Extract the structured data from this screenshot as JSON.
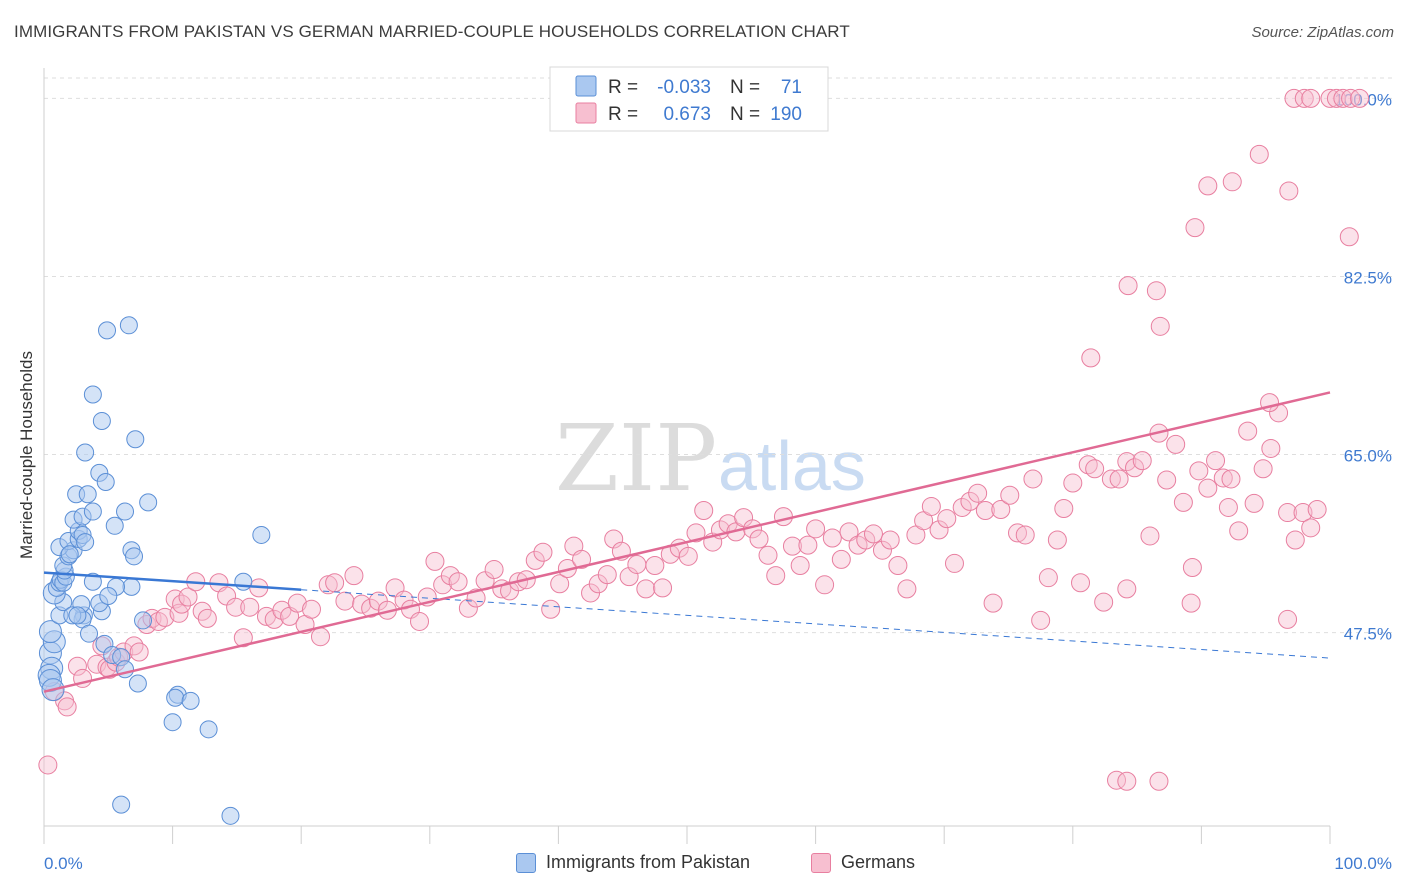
{
  "title": "IMMIGRANTS FROM PAKISTAN VS GERMAN MARRIED-COUPLE HOUSEHOLDS CORRELATION CHART",
  "source": "Source: ZipAtlas.com",
  "watermark": {
    "zip": "ZIP",
    "atlas": "atlas"
  },
  "legend": {
    "rows": [
      {
        "r_label": "R =",
        "r_value": "-0.033",
        "n_label": "N =",
        "n_value": "71",
        "color": "#aac8f0",
        "stroke": "#5b8fd6"
      },
      {
        "r_label": "R =",
        "r_value": "0.673",
        "n_label": "N =",
        "n_value": "190",
        "color": "#f7bfd0",
        "stroke": "#e87fa0"
      }
    ]
  },
  "bottom_legend": [
    "Immigrants from Pakistan",
    "Germans"
  ],
  "colors": {
    "blue_fill": "#aac8f0",
    "blue_stroke": "#5b8fd6",
    "blue_line": "#3a78d4",
    "pink_fill": "#f7bfd0",
    "pink_stroke": "#e87fa0",
    "pink_line": "#e06a94",
    "tick_text": "#3f7ad0"
  },
  "chart_data": {
    "type": "scatter",
    "title": "IMMIGRANTS FROM PAKISTAN VS GERMAN MARRIED-COUPLE HOUSEHOLDS CORRELATION CHART",
    "xlabel": "",
    "ylabel": "Married-couple Households",
    "xlim": [
      0,
      100
    ],
    "ylim": [
      28.5,
      102
    ],
    "x_tick_labels": [
      "0.0%",
      "100.0%"
    ],
    "y_ticks": [
      47.5,
      65.0,
      82.5,
      100.0
    ],
    "y_tick_labels": [
      "47.5%",
      "65.0%",
      "82.5%",
      "100.0%"
    ],
    "grid": true,
    "legend_position": "top-center",
    "series": [
      {
        "name": "Immigrants from Pakistan",
        "r": -0.033,
        "n": 71,
        "trend": {
          "x": [
            0,
            100
          ],
          "y": [
            53.4,
            45.0
          ],
          "solid_until": 20
        },
        "points": [
          [
            0.5,
            45.5
          ],
          [
            0.6,
            44.0
          ],
          [
            0.4,
            43.3
          ],
          [
            0.5,
            42.8
          ],
          [
            0.7,
            41.9
          ],
          [
            0.8,
            46.6
          ],
          [
            0.5,
            47.6
          ],
          [
            1.2,
            49.2
          ],
          [
            1.5,
            50.5
          ],
          [
            0.8,
            51.4
          ],
          [
            1.0,
            51.9
          ],
          [
            1.2,
            52.4
          ],
          [
            1.3,
            52.7
          ],
          [
            1.5,
            52.4
          ],
          [
            1.7,
            53.0
          ],
          [
            1.6,
            53.6
          ],
          [
            1.5,
            54.1
          ],
          [
            1.9,
            55.0
          ],
          [
            2.3,
            55.6
          ],
          [
            1.2,
            55.9
          ],
          [
            1.9,
            56.5
          ],
          [
            2.7,
            56.7
          ],
          [
            2.7,
            57.5
          ],
          [
            3.0,
            57.1
          ],
          [
            3.2,
            56.4
          ],
          [
            2.3,
            58.6
          ],
          [
            3.0,
            58.9
          ],
          [
            3.8,
            59.4
          ],
          [
            2.5,
            61.1
          ],
          [
            3.4,
            61.1
          ],
          [
            4.3,
            63.2
          ],
          [
            3.2,
            65.2
          ],
          [
            3.8,
            70.9
          ],
          [
            4.5,
            68.3
          ],
          [
            4.9,
            77.2
          ],
          [
            6.6,
            77.7
          ],
          [
            7.1,
            66.5
          ],
          [
            4.8,
            62.3
          ],
          [
            6.3,
            59.4
          ],
          [
            3.8,
            52.5
          ],
          [
            5.5,
            58.0
          ],
          [
            6.8,
            55.6
          ],
          [
            7.0,
            55.0
          ],
          [
            8.1,
            60.3
          ],
          [
            6.8,
            52.0
          ],
          [
            5.6,
            52.0
          ],
          [
            3.1,
            49.2
          ],
          [
            4.5,
            49.6
          ],
          [
            4.3,
            50.4
          ],
          [
            5.0,
            51.1
          ],
          [
            3.0,
            48.8
          ],
          [
            2.9,
            50.3
          ],
          [
            2.2,
            49.2
          ],
          [
            2.6,
            49.2
          ],
          [
            3.5,
            47.4
          ],
          [
            4.7,
            46.4
          ],
          [
            5.3,
            45.3
          ],
          [
            6.0,
            45.1
          ],
          [
            6.3,
            43.9
          ],
          [
            7.3,
            42.5
          ],
          [
            7.7,
            48.7
          ],
          [
            10.4,
            41.4
          ],
          [
            10.2,
            41.1
          ],
          [
            11.4,
            40.8
          ],
          [
            10.0,
            38.7
          ],
          [
            12.8,
            38.0
          ],
          [
            15.5,
            52.5
          ],
          [
            16.9,
            57.1
          ],
          [
            6.0,
            30.6
          ],
          [
            14.5,
            29.5
          ],
          [
            2.0,
            55.2
          ]
        ]
      },
      {
        "name": "Germans",
        "r": 0.673,
        "n": 190,
        "trend": {
          "x": [
            0,
            100
          ],
          "y": [
            41.7,
            71.1
          ]
        },
        "points": [
          [
            0.3,
            34.5
          ],
          [
            0.8,
            41.7
          ],
          [
            1.6,
            40.8
          ],
          [
            1.8,
            40.2
          ],
          [
            2.6,
            44.2
          ],
          [
            3.0,
            43.0
          ],
          [
            4.1,
            44.4
          ],
          [
            4.5,
            46.2
          ],
          [
            4.9,
            44.1
          ],
          [
            5.1,
            43.9
          ],
          [
            5.6,
            44.6
          ],
          [
            5.8,
            45.1
          ],
          [
            6.2,
            45.6
          ],
          [
            7.0,
            46.2
          ],
          [
            7.4,
            45.6
          ],
          [
            8.0,
            48.3
          ],
          [
            8.4,
            48.9
          ],
          [
            8.9,
            48.6
          ],
          [
            9.4,
            49.0
          ],
          [
            10.2,
            50.8
          ],
          [
            10.5,
            49.4
          ],
          [
            10.7,
            50.3
          ],
          [
            11.2,
            51.0
          ],
          [
            11.8,
            52.5
          ],
          [
            12.3,
            49.6
          ],
          [
            12.7,
            48.9
          ],
          [
            13.6,
            52.4
          ],
          [
            14.2,
            51.1
          ],
          [
            14.9,
            50.0
          ],
          [
            15.5,
            47.0
          ],
          [
            16.0,
            50.0
          ],
          [
            16.7,
            51.9
          ],
          [
            17.3,
            49.1
          ],
          [
            17.9,
            48.8
          ],
          [
            18.5,
            49.7
          ],
          [
            19.1,
            49.1
          ],
          [
            19.7,
            50.4
          ],
          [
            20.3,
            48.3
          ],
          [
            20.8,
            49.8
          ],
          [
            21.5,
            47.1
          ],
          [
            22.1,
            52.2
          ],
          [
            22.6,
            52.4
          ],
          [
            23.4,
            50.6
          ],
          [
            24.1,
            53.1
          ],
          [
            24.7,
            50.3
          ],
          [
            25.4,
            49.9
          ],
          [
            26.0,
            50.6
          ],
          [
            26.7,
            49.7
          ],
          [
            27.3,
            51.9
          ],
          [
            28.0,
            50.7
          ],
          [
            28.5,
            49.8
          ],
          [
            29.2,
            48.6
          ],
          [
            29.8,
            51.0
          ],
          [
            30.4,
            54.5
          ],
          [
            31.0,
            52.2
          ],
          [
            31.6,
            53.1
          ],
          [
            32.2,
            52.5
          ],
          [
            33.0,
            49.9
          ],
          [
            33.6,
            50.9
          ],
          [
            34.3,
            52.6
          ],
          [
            35.0,
            53.7
          ],
          [
            35.6,
            51.8
          ],
          [
            36.2,
            51.6
          ],
          [
            36.9,
            52.5
          ],
          [
            37.5,
            52.7
          ],
          [
            38.2,
            54.6
          ],
          [
            38.8,
            55.4
          ],
          [
            39.4,
            49.8
          ],
          [
            40.1,
            52.3
          ],
          [
            40.7,
            53.8
          ],
          [
            41.2,
            56.0
          ],
          [
            41.8,
            54.7
          ],
          [
            42.5,
            51.4
          ],
          [
            43.1,
            52.3
          ],
          [
            43.8,
            53.2
          ],
          [
            44.3,
            56.7
          ],
          [
            44.9,
            55.5
          ],
          [
            45.5,
            53.0
          ],
          [
            46.1,
            54.2
          ],
          [
            46.8,
            51.8
          ],
          [
            47.5,
            54.1
          ],
          [
            48.1,
            51.9
          ],
          [
            48.7,
            55.2
          ],
          [
            49.4,
            55.8
          ],
          [
            50.1,
            55.0
          ],
          [
            50.7,
            57.3
          ],
          [
            51.3,
            59.5
          ],
          [
            52.0,
            56.4
          ],
          [
            52.6,
            57.6
          ],
          [
            53.2,
            58.2
          ],
          [
            53.8,
            57.4
          ],
          [
            54.4,
            58.8
          ],
          [
            55.1,
            57.7
          ],
          [
            55.6,
            56.7
          ],
          [
            56.3,
            55.1
          ],
          [
            56.9,
            53.1
          ],
          [
            57.5,
            58.9
          ],
          [
            58.2,
            56.0
          ],
          [
            58.8,
            54.1
          ],
          [
            59.4,
            56.1
          ],
          [
            60.0,
            57.7
          ],
          [
            60.7,
            52.2
          ],
          [
            61.3,
            56.8
          ],
          [
            62.0,
            54.7
          ],
          [
            62.6,
            57.4
          ],
          [
            63.3,
            56.1
          ],
          [
            63.9,
            56.6
          ],
          [
            64.5,
            57.2
          ],
          [
            65.2,
            55.6
          ],
          [
            65.8,
            56.6
          ],
          [
            66.4,
            54.1
          ],
          [
            67.1,
            51.8
          ],
          [
            67.8,
            57.1
          ],
          [
            68.4,
            58.5
          ],
          [
            69.0,
            59.9
          ],
          [
            69.6,
            57.6
          ],
          [
            70.2,
            58.7
          ],
          [
            70.8,
            54.3
          ],
          [
            71.4,
            59.8
          ],
          [
            72.0,
            60.4
          ],
          [
            72.6,
            61.2
          ],
          [
            73.2,
            59.5
          ],
          [
            73.8,
            50.4
          ],
          [
            74.4,
            59.6
          ],
          [
            75.1,
            61.0
          ],
          [
            75.7,
            57.3
          ],
          [
            76.3,
            57.1
          ],
          [
            76.9,
            62.6
          ],
          [
            77.5,
            48.7
          ],
          [
            78.1,
            52.9
          ],
          [
            78.8,
            56.6
          ],
          [
            79.3,
            59.7
          ],
          [
            80.0,
            62.2
          ],
          [
            80.6,
            52.4
          ],
          [
            81.2,
            64.0
          ],
          [
            81.7,
            63.6
          ],
          [
            82.4,
            50.5
          ],
          [
            83.0,
            62.6
          ],
          [
            83.6,
            62.6
          ],
          [
            84.2,
            64.3
          ],
          [
            84.8,
            63.7
          ],
          [
            85.4,
            64.4
          ],
          [
            86.0,
            57.0
          ],
          [
            86.7,
            67.1
          ],
          [
            87.3,
            62.5
          ],
          [
            88.0,
            66.0
          ],
          [
            88.6,
            60.3
          ],
          [
            89.2,
            50.4
          ],
          [
            89.8,
            63.4
          ],
          [
            90.5,
            61.7
          ],
          [
            91.1,
            64.4
          ],
          [
            91.7,
            62.7
          ],
          [
            92.3,
            62.6
          ],
          [
            92.9,
            57.5
          ],
          [
            93.6,
            67.3
          ],
          [
            94.1,
            60.2
          ],
          [
            94.8,
            63.6
          ],
          [
            95.4,
            65.6
          ],
          [
            96.0,
            69.1
          ],
          [
            96.7,
            59.3
          ],
          [
            97.3,
            56.6
          ],
          [
            97.9,
            59.3
          ],
          [
            98.5,
            57.8
          ],
          [
            99.0,
            59.6
          ],
          [
            92.1,
            59.8
          ],
          [
            84.2,
            51.8
          ],
          [
            89.3,
            53.9
          ],
          [
            95.3,
            70.1
          ],
          [
            96.7,
            48.8
          ],
          [
            81.4,
            74.5
          ],
          [
            84.3,
            81.6
          ],
          [
            86.5,
            81.1
          ],
          [
            86.8,
            77.6
          ],
          [
            89.5,
            87.3
          ],
          [
            90.5,
            91.4
          ],
          [
            92.4,
            91.8
          ],
          [
            94.5,
            94.5
          ],
          [
            96.8,
            90.9
          ],
          [
            97.2,
            100.0
          ],
          [
            98.0,
            100.0
          ],
          [
            98.5,
            100.0
          ],
          [
            100.0,
            100.0
          ],
          [
            100.5,
            100.0
          ],
          [
            101.0,
            100.0
          ],
          [
            101.6,
            100.0
          ],
          [
            102.3,
            100.0
          ],
          [
            101.5,
            86.4
          ],
          [
            83.4,
            33.0
          ],
          [
            84.2,
            32.9
          ],
          [
            86.7,
            32.9
          ]
        ]
      }
    ]
  }
}
